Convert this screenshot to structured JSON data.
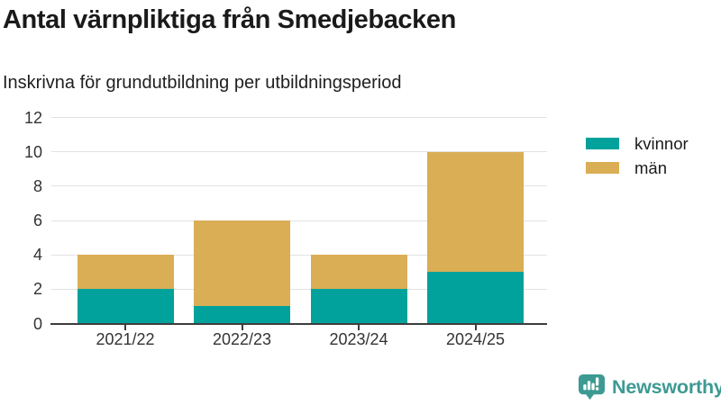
{
  "header": {
    "title": "Antal värnpliktiga från Smedjebacken",
    "subtitle": "Inskrivna för grundutbildning per utbildningsperiod"
  },
  "chart_data": {
    "type": "bar",
    "stacked": true,
    "title": "Antal värnpliktiga från Smedjebacken",
    "subtitle": "Inskrivna för grundutbildning per utbildningsperiod",
    "categories": [
      "2021/22",
      "2022/23",
      "2023/24",
      "2024/25"
    ],
    "series": [
      {
        "name": "kvinnor",
        "color": "#00a29b",
        "values": [
          2,
          1,
          2,
          3
        ]
      },
      {
        "name": "män",
        "color": "#d9ae55",
        "values": [
          2,
          5,
          2,
          7
        ]
      }
    ],
    "totals": [
      4,
      6,
      4,
      10
    ],
    "xlabel": "",
    "ylabel": "",
    "ylim": [
      0,
      12
    ],
    "yticks": [
      0,
      2,
      4,
      6,
      8,
      10,
      12
    ],
    "grid": true,
    "grid_color": "#e2e2e2",
    "axis_color": "#3d3d3d",
    "legend_position": "top-right"
  },
  "logo": {
    "text": "Newsworthy",
    "color": "#3d9a93",
    "icon": "bar-chart-speech-bubble-icon"
  }
}
